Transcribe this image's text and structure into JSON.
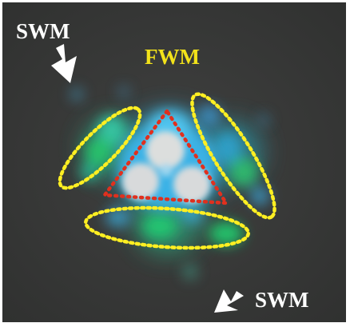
{
  "labels": {
    "swm_top": "SWM",
    "fwm": "FWM",
    "swm_bottom": "SWM"
  },
  "colors": {
    "background": "#3a3b3a",
    "swm_label": "#ffffff",
    "fwm_label": "#f2e21a",
    "fwm_outline": "#ffef22",
    "center_outline": "#e0301e",
    "arrow": "#ffffff",
    "spot_center": "#d9dbdb",
    "spot_blue": "#3fb6e6",
    "spot_green": "#2cc878",
    "spot_dim": "#3d8db0"
  },
  "icons": [
    "arrow-icon",
    "arrow-icon"
  ]
}
